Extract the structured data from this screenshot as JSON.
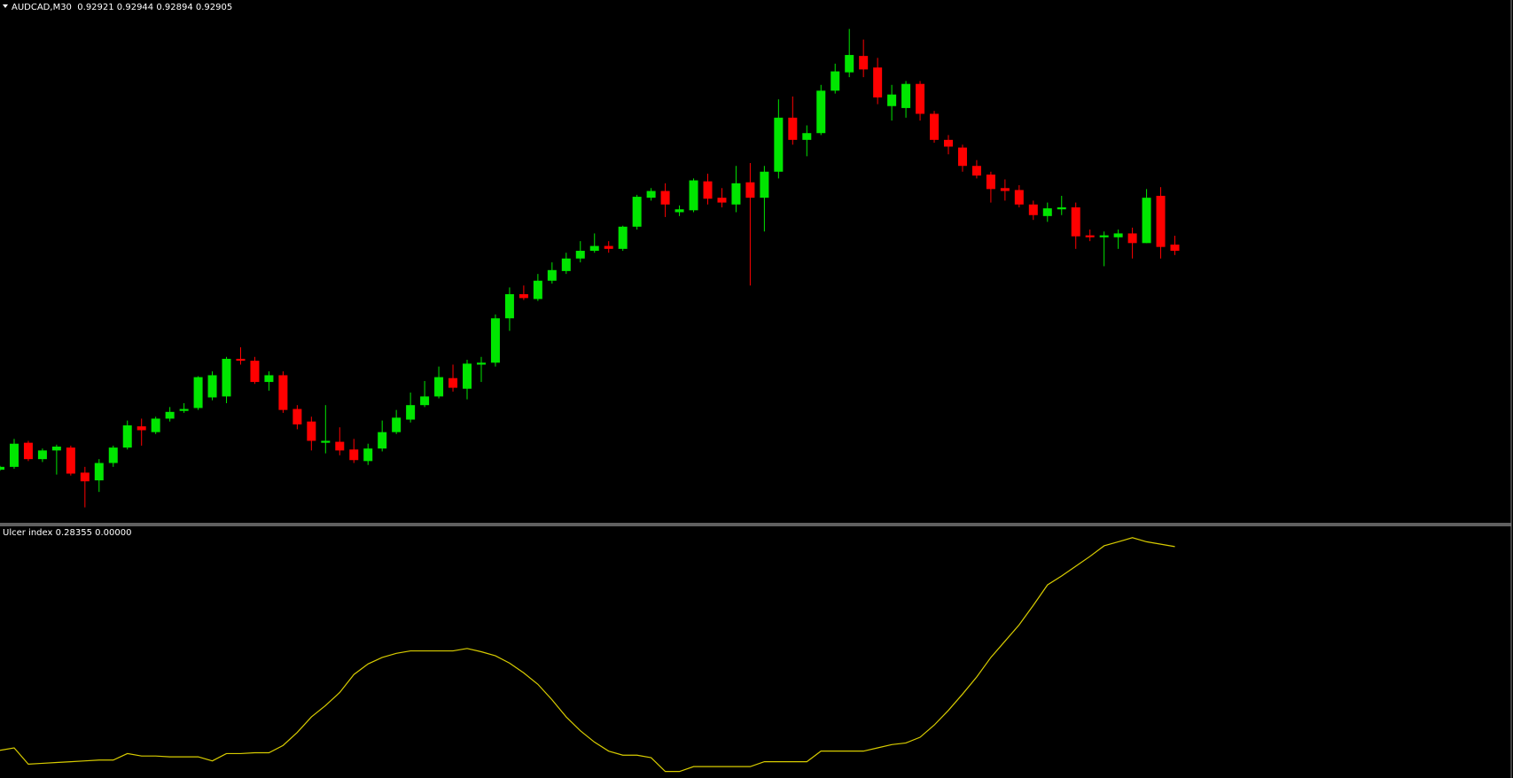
{
  "chart_data": [
    {
      "type": "candlestick",
      "title": "AUDCAD,M30  0.92921 0.92944 0.92894 0.92905",
      "up_color": "#00e600",
      "down_color": "#ff0000",
      "ylim": [
        0.922,
        0.93555
      ],
      "open": [
        0.923375,
        0.92345,
        0.924075,
        0.92365,
        0.923875,
        0.92395,
        0.9233,
        0.9231,
        0.92355,
        0.92395,
        0.9245,
        0.92435,
        0.9247,
        0.9249,
        0.924975,
        0.92525,
        0.925275,
        0.92625,
        0.9262,
        0.92565,
        0.925825,
        0.92495,
        0.924625,
        0.924075,
        0.9241,
        0.9239,
        0.9236,
        0.923925,
        0.92435,
        0.924675,
        0.92505,
        0.925275,
        0.92575,
        0.925475,
        0.9261,
        0.92615,
        0.9273,
        0.927925,
        0.9278,
        0.928275,
        0.928525,
        0.92885,
        0.92905,
        0.929175,
        0.9291,
        0.929675,
        0.930425,
        0.9306,
        0.93005,
        0.9301,
        0.93085,
        0.930425,
        0.93025,
        0.930825,
        0.930425,
        0.9311,
        0.9325,
        0.931925,
        0.9321,
        0.9332,
        0.933675,
        0.9341,
        0.9338,
        0.9328,
        0.93275,
        0.933375,
        0.9326,
        0.931925,
        0.931725,
        0.93125,
        0.931025,
        0.930675,
        0.930625,
        0.93025,
        0.92995,
        0.930125,
        0.930175,
        0.92945,
        0.9294,
        0.9294,
        0.9295,
        0.92925,
        0.930475,
        0.92921
      ],
      "high": [
        0.923475,
        0.924175,
        0.924125,
        0.923925,
        0.924025,
        0.924,
        0.92345,
        0.92365,
        0.924,
        0.92465,
        0.9247,
        0.92475,
        0.925,
        0.9251,
        0.9258,
        0.925925,
        0.9263,
        0.92655,
        0.9263,
        0.925925,
        0.925925,
        0.92505,
        0.92475,
        0.92505,
        0.924475,
        0.924175,
        0.92405,
        0.92465,
        0.924925,
        0.925375,
        0.925675,
        0.92605,
        0.9261,
        0.926225,
        0.9263,
        0.9274,
        0.9281,
        0.92815,
        0.92845,
        0.92875,
        0.929,
        0.9293,
        0.9295,
        0.9293,
        0.9297,
        0.9305,
        0.930675,
        0.9308,
        0.930225,
        0.930925,
        0.93105,
        0.930675,
        0.93125,
        0.931325,
        0.93125,
        0.932975,
        0.93305,
        0.9323,
        0.93335,
        0.9339,
        0.9348,
        0.934525,
        0.93405,
        0.93335,
        0.93345,
        0.93345,
        0.932675,
        0.93205,
        0.9318,
        0.9314,
        0.9311,
        0.9309,
        0.93075,
        0.93035,
        0.9303,
        0.930475,
        0.9303,
        0.9296,
        0.92955,
        0.9296,
        0.92965,
        0.93065,
        0.9307,
        0.92944
      ],
      "low": [
        0.92335,
        0.9234,
        0.9236,
        0.923575,
        0.92325,
        0.923225,
        0.9224,
        0.9228,
        0.92345,
        0.9239,
        0.924,
        0.9243,
        0.924625,
        0.92485,
        0.924925,
        0.925175,
        0.9251,
        0.9261,
        0.9256,
        0.925425,
        0.92485,
        0.924425,
        0.923875,
        0.9238,
        0.92375,
        0.92355,
        0.9235,
        0.92385,
        0.9243,
        0.9246,
        0.925,
        0.925225,
        0.9254,
        0.9252,
        0.92565,
        0.92605,
        0.926975,
        0.927775,
        0.92775,
        0.9282,
        0.92845,
        0.92875,
        0.929,
        0.929,
        0.92905,
        0.9296,
        0.93035,
        0.929925,
        0.92995,
        0.93005,
        0.93025,
        0.930175,
        0.93005,
        0.92815,
        0.92955,
        0.930925,
        0.9318,
        0.9315,
        0.93205,
        0.933125,
        0.93355,
        0.93355,
        0.93285,
        0.932425,
        0.9325,
        0.932425,
        0.93185,
        0.93155,
        0.9311,
        0.930925,
        0.9303,
        0.93035,
        0.930175,
        0.92985,
        0.9298,
        0.929975,
        0.9291,
        0.9293,
        0.92865,
        0.9291,
        0.92885,
        0.92925,
        0.92885,
        0.92894
      ],
      "close": [
        0.92345,
        0.92405,
        0.92365,
        0.923875,
        0.923975,
        0.923275,
        0.923075,
        0.92355,
        0.92395,
        0.924525,
        0.9244,
        0.9247,
        0.924875,
        0.92495,
        0.925775,
        0.925825,
        0.92625,
        0.9262,
        0.92565,
        0.925825,
        0.924925,
        0.92455,
        0.924125,
        0.924125,
        0.923875,
        0.923625,
        0.923925,
        0.92435,
        0.924725,
        0.92505,
        0.925275,
        0.925775,
        0.9255,
        0.926125,
        0.92615,
        0.9273,
        0.927925,
        0.927825,
        0.928275,
        0.92855,
        0.92885,
        0.92905,
        0.929175,
        0.9291,
        0.929675,
        0.93045,
        0.9306,
        0.93025,
        0.930125,
        0.930875,
        0.9304,
        0.9303,
        0.9308,
        0.930425,
        0.9311,
        0.9325,
        0.931925,
        0.9321,
        0.9332,
        0.9337,
        0.934125,
        0.93375,
        0.933025,
        0.9331,
        0.933375,
        0.9326,
        0.931925,
        0.93175,
        0.93125,
        0.931,
        0.93065,
        0.9306,
        0.93025,
        0.929975,
        0.93015,
        0.930175,
        0.929425,
        0.9294,
        0.92945,
        0.9295,
        0.92925,
        0.930425,
        0.92915,
        0.92905
      ]
    },
    {
      "type": "line",
      "title": "Ulcer index 0.28355 0.00000",
      "color": "#d8cc00",
      "ylim": [
        0,
        0.31
      ],
      "values": [
        0.034,
        0.037,
        0.017,
        0.018,
        0.019,
        0.02,
        0.021,
        0.022,
        0.022,
        0.03,
        0.027,
        0.027,
        0.026,
        0.026,
        0.026,
        0.021,
        0.03,
        0.03,
        0.031,
        0.031,
        0.04,
        0.056,
        0.075,
        0.089,
        0.105,
        0.127,
        0.14,
        0.148,
        0.153,
        0.156,
        0.156,
        0.156,
        0.156,
        0.159,
        0.155,
        0.15,
        0.141,
        0.129,
        0.115,
        0.096,
        0.075,
        0.058,
        0.044,
        0.033,
        0.028,
        0.028,
        0.025,
        0.008,
        0.008,
        0.014,
        0.014,
        0.014,
        0.014,
        0.014,
        0.02,
        0.02,
        0.02,
        0.02,
        0.033,
        0.033,
        0.033,
        0.033,
        0.037,
        0.041,
        0.043,
        0.05,
        0.065,
        0.083,
        0.103,
        0.124,
        0.148,
        0.168,
        0.188,
        0.212,
        0.237,
        0.248,
        0.26,
        0.272,
        0.285,
        0.29,
        0.295,
        0.29,
        0.287,
        0.284
      ]
    }
  ]
}
